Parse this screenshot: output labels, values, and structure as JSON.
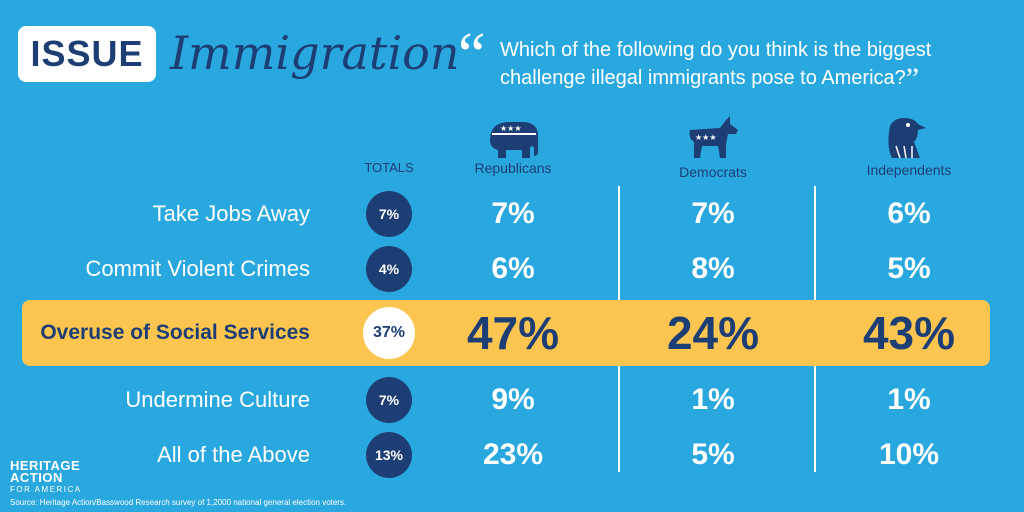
{
  "header": {
    "badge": "ISSUE",
    "topic": "Immigration",
    "quote_open": "“",
    "question": "Which of the following do you think is the biggest challenge illegal immigrants pose to America?",
    "quote_close": "”"
  },
  "chart_data": {
    "type": "table",
    "columns": [
      "TOTALS",
      "Republicans",
      "Democrats",
      "Independents"
    ],
    "rows": [
      {
        "label": "Take Jobs Away",
        "values": [
          "7%",
          "7%",
          "7%",
          "6%"
        ],
        "highlight": false
      },
      {
        "label": "Commit Violent Crimes",
        "values": [
          "4%",
          "6%",
          "8%",
          "5%"
        ],
        "highlight": false
      },
      {
        "label": "Overuse of Social Services",
        "values": [
          "37%",
          "47%",
          "24%",
          "43%"
        ],
        "highlight": true
      },
      {
        "label": "Undermine Culture",
        "values": [
          "7%",
          "9%",
          "1%",
          "1%"
        ],
        "highlight": false
      },
      {
        "label": "All of the Above",
        "values": [
          "13%",
          "23%",
          "5%",
          "10%"
        ],
        "highlight": false
      }
    ]
  },
  "icons": {
    "republicans": "elephant-icon",
    "democrats": "donkey-icon",
    "independents": "eagle-icon"
  },
  "colors": {
    "background": "#29a8e0",
    "navy": "#1d3e74",
    "highlight": "#fbc54f",
    "white": "#ffffff"
  },
  "footer": {
    "logo_line1": "HERITAGE",
    "logo_line2": "ACTION",
    "logo_line3": "FOR AMERICA",
    "source": "Source: Heritage Action/Basswood Research survey of 1,2000 national general election voters."
  }
}
